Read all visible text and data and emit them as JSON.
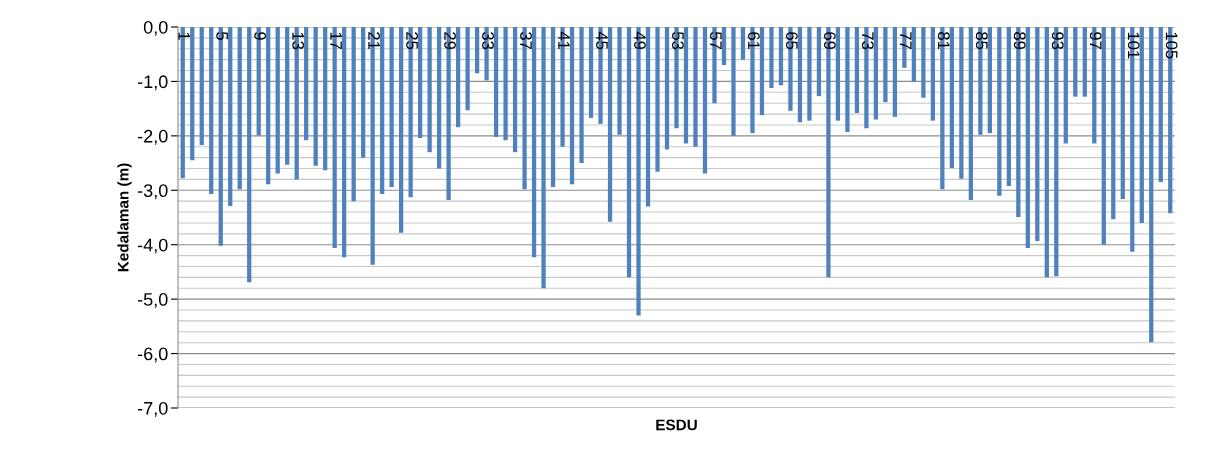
{
  "chart_data": {
    "type": "bar",
    "xlabel": "ESDU",
    "ylabel": "Kedalaman (m)",
    "categories": [
      "1",
      null,
      null,
      null,
      "5",
      null,
      null,
      null,
      "9",
      null,
      null,
      null,
      "13",
      null,
      null,
      null,
      "17",
      null,
      null,
      null,
      "21",
      null,
      null,
      null,
      "25",
      null,
      null,
      null,
      "29",
      null,
      null,
      null,
      "33",
      null,
      null,
      null,
      "37",
      null,
      null,
      null,
      "41",
      null,
      null,
      null,
      "45",
      null,
      null,
      null,
      "49",
      null,
      null,
      null,
      "53",
      null,
      null,
      null,
      "57",
      null,
      null,
      null,
      "61",
      null,
      null,
      null,
      "65",
      null,
      null,
      null,
      "69",
      null,
      null,
      null,
      "73",
      null,
      null,
      null,
      "77",
      null,
      null,
      null,
      "81",
      null,
      null,
      null,
      "85",
      null,
      null,
      null,
      "89",
      null,
      null,
      null,
      "93",
      null,
      null,
      null,
      "97",
      null,
      null,
      null,
      "101",
      null,
      null,
      null,
      "105"
    ],
    "values": [
      -2.78,
      -2.45,
      -2.17,
      -3.07,
      -4.02,
      -3.29,
      -2.98,
      -4.69,
      -1.99,
      -2.89,
      -2.69,
      -2.53,
      -2.8,
      -2.08,
      -2.55,
      -2.63,
      -4.06,
      -4.23,
      -3.2,
      -2.4,
      -4.37,
      -3.07,
      -2.94,
      -3.78,
      -3.13,
      -2.04,
      -2.3,
      -2.6,
      -3.18,
      -1.84,
      -1.53,
      -0.85,
      -0.98,
      -2.02,
      -2.08,
      -2.3,
      -2.98,
      -4.23,
      -4.8,
      -2.94,
      -2.2,
      -2.89,
      -2.5,
      -1.67,
      -1.78,
      -3.58,
      -1.98,
      -4.6,
      -5.3,
      -3.3,
      -2.66,
      -2.25,
      -1.86,
      -2.14,
      -2.2,
      -2.69,
      -1.4,
      -0.7,
      -2.0,
      -0.6,
      -1.95,
      -1.62,
      -1.12,
      -1.07,
      -1.54,
      -1.75,
      -1.72,
      -1.27,
      -4.6,
      -1.72,
      -1.93,
      -1.58,
      -1.86,
      -1.7,
      -1.38,
      -1.65,
      -0.75,
      -1.0,
      -1.3,
      -1.72,
      -2.98,
      -2.59,
      -2.79,
      -3.18,
      -1.98,
      -1.95,
      -3.1,
      -2.92,
      -3.49,
      -4.06,
      -3.93,
      -4.6,
      -4.58,
      -2.14,
      -1.28,
      -1.28,
      -2.14,
      -4.0,
      -3.53,
      -3.16,
      -4.13,
      -3.6,
      -5.79,
      -2.85,
      -3.42
    ],
    "color": "#4f81bd",
    "ylim": [
      -7,
      0
    ],
    "yticks": [
      {
        "value": 0,
        "label": "0,0"
      },
      {
        "value": -0.2,
        "label": null
      },
      {
        "value": -0.4,
        "label": null
      },
      {
        "value": -0.6,
        "label": null
      },
      {
        "value": -0.8,
        "label": null
      },
      {
        "value": -1,
        "label": "-1,0"
      },
      {
        "value": -1.2,
        "label": null
      },
      {
        "value": -1.4,
        "label": null
      },
      {
        "value": -1.6,
        "label": null
      },
      {
        "value": -1.8,
        "label": null
      },
      {
        "value": -2,
        "label": "-2,0"
      },
      {
        "value": -2.2,
        "label": null
      },
      {
        "value": -2.4,
        "label": null
      },
      {
        "value": -2.6,
        "label": null
      },
      {
        "value": -2.8,
        "label": null
      },
      {
        "value": -3,
        "label": "-3,0"
      },
      {
        "value": -3.2,
        "label": null
      },
      {
        "value": -3.4,
        "label": null
      },
      {
        "value": -3.6,
        "label": null
      },
      {
        "value": -3.8,
        "label": null
      },
      {
        "value": -4,
        "label": "-4,0"
      },
      {
        "value": -4.2,
        "label": null
      },
      {
        "value": -4.4,
        "label": null
      },
      {
        "value": -4.6,
        "label": null
      },
      {
        "value": -4.8,
        "label": null
      },
      {
        "value": -5,
        "label": "-5,0"
      },
      {
        "value": -5.2,
        "label": null
      },
      {
        "value": -5.4,
        "label": null
      },
      {
        "value": -5.6,
        "label": null
      },
      {
        "value": -5.8,
        "label": null
      },
      {
        "value": -6,
        "label": "-6,0"
      },
      {
        "value": -6.2,
        "label": null
      },
      {
        "value": -6.4,
        "label": null
      },
      {
        "value": -6.6,
        "label": null
      },
      {
        "value": -6.8,
        "label": null
      },
      {
        "value": -7,
        "label": "-7,0"
      }
    ],
    "grid": "y"
  }
}
